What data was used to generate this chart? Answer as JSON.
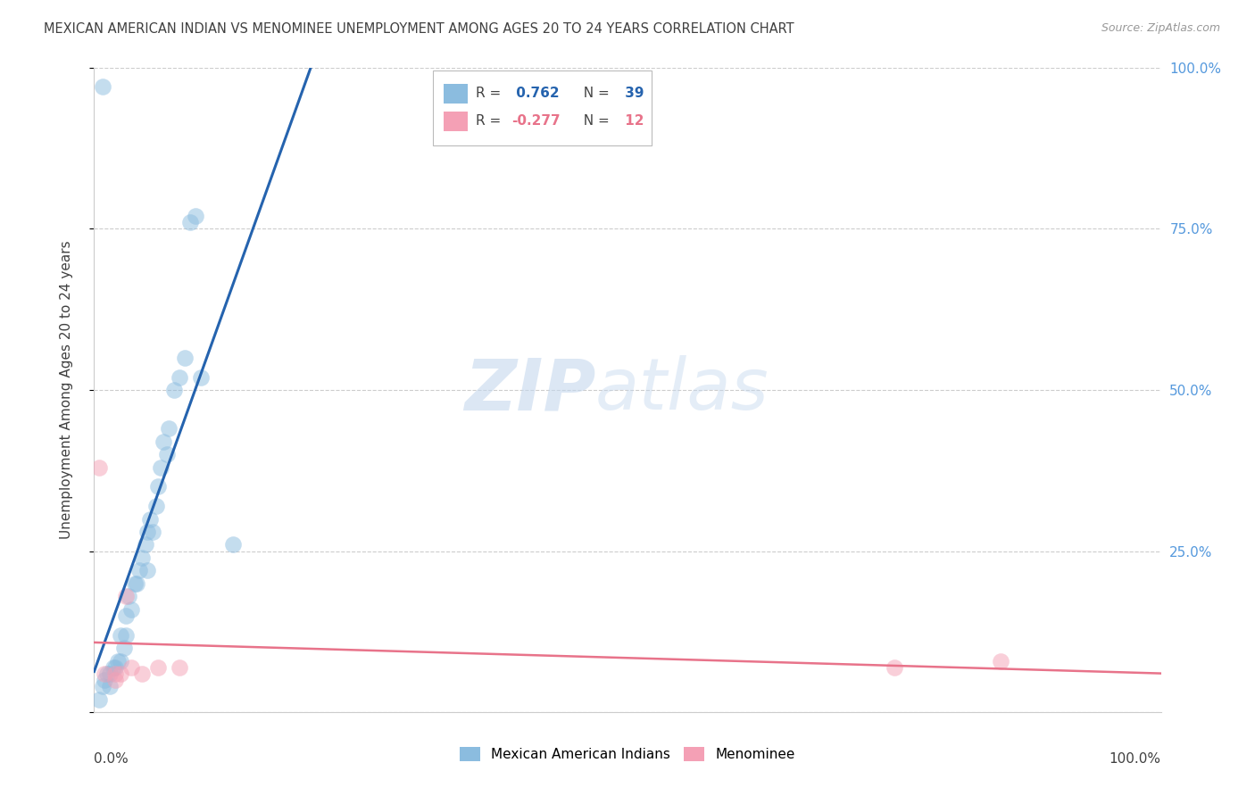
{
  "title": "MEXICAN AMERICAN INDIAN VS MENOMINEE UNEMPLOYMENT AMONG AGES 20 TO 24 YEARS CORRELATION CHART",
  "source": "Source: ZipAtlas.com",
  "ylabel": "Unemployment Among Ages 20 to 24 years",
  "watermark_zip": "ZIP",
  "watermark_atlas": "atlas",
  "blue_r": 0.762,
  "blue_n": 39,
  "pink_r": -0.277,
  "pink_n": 12,
  "blue_scatter_x": [
    0.005,
    0.008,
    0.01,
    0.012,
    0.015,
    0.018,
    0.02,
    0.022,
    0.025,
    0.025,
    0.028,
    0.03,
    0.03,
    0.032,
    0.035,
    0.038,
    0.04,
    0.042,
    0.045,
    0.048,
    0.05,
    0.05,
    0.052,
    0.055,
    0.058,
    0.06,
    0.062,
    0.065,
    0.068,
    0.07,
    0.075,
    0.08,
    0.085,
    0.09,
    0.095,
    0.1,
    0.13,
    0.008,
    0.015
  ],
  "blue_scatter_y": [
    0.02,
    0.04,
    0.05,
    0.06,
    0.06,
    0.07,
    0.07,
    0.08,
    0.08,
    0.12,
    0.1,
    0.12,
    0.15,
    0.18,
    0.16,
    0.2,
    0.2,
    0.22,
    0.24,
    0.26,
    0.22,
    0.28,
    0.3,
    0.28,
    0.32,
    0.35,
    0.38,
    0.42,
    0.4,
    0.44,
    0.5,
    0.52,
    0.55,
    0.76,
    0.77,
    0.52,
    0.26,
    0.97,
    0.04
  ],
  "pink_scatter_x": [
    0.005,
    0.01,
    0.02,
    0.025,
    0.03,
    0.035,
    0.045,
    0.06,
    0.08,
    0.75,
    0.85,
    0.02
  ],
  "pink_scatter_y": [
    0.38,
    0.06,
    0.06,
    0.06,
    0.18,
    0.07,
    0.06,
    0.07,
    0.07,
    0.07,
    0.08,
    0.05
  ],
  "blue_color": "#8BBCDF",
  "pink_color": "#F4A0B5",
  "blue_line_color": "#2563AE",
  "pink_line_color": "#E8738A",
  "legend_blue_r_color": "#2563AE",
  "legend_pink_r_color": "#E8738A",
  "title_color": "#404040",
  "source_color": "#999999",
  "right_axis_color": "#5599DD",
  "grid_color": "#CCCCCC",
  "background_color": "#FFFFFF",
  "xlim": [
    0.0,
    1.0
  ],
  "ylim": [
    0.0,
    1.0
  ]
}
